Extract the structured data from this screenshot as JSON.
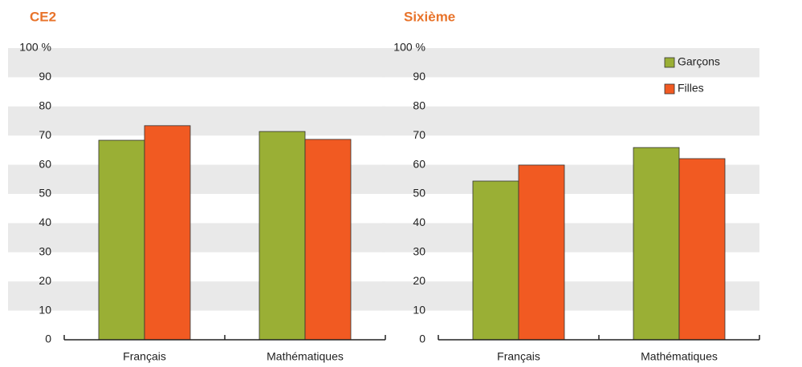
{
  "chart_data": [
    {
      "type": "bar",
      "title": "CE2",
      "categories": [
        "Français",
        "Mathématiques"
      ],
      "series": [
        {
          "name": "Garçons",
          "color": "#9aaf35",
          "values": [
            68.4,
            71.4
          ]
        },
        {
          "name": "Filles",
          "color": "#f15a22",
          "values": [
            73.4,
            68.7
          ]
        }
      ],
      "ylim": [
        0,
        100
      ],
      "yticks": [
        0,
        10,
        20,
        30,
        40,
        50,
        60,
        70,
        80,
        90,
        {
          "value": 100,
          "label": "100 %"
        }
      ],
      "grid": "bands",
      "legend": false
    },
    {
      "type": "bar",
      "title": "Sixième",
      "categories": [
        "Français",
        "Mathématiques"
      ],
      "series": [
        {
          "name": "Garçons",
          "color": "#9aaf35",
          "values": [
            54.4,
            65.9
          ]
        },
        {
          "name": "Filles",
          "color": "#f15a22",
          "values": [
            59.9,
            62.1
          ]
        }
      ],
      "ylim": [
        0,
        100
      ],
      "yticks": [
        0,
        10,
        20,
        30,
        40,
        50,
        60,
        70,
        80,
        90,
        {
          "value": 100,
          "label": "100 %"
        }
      ],
      "grid": "bands",
      "legend": "upper right"
    }
  ]
}
